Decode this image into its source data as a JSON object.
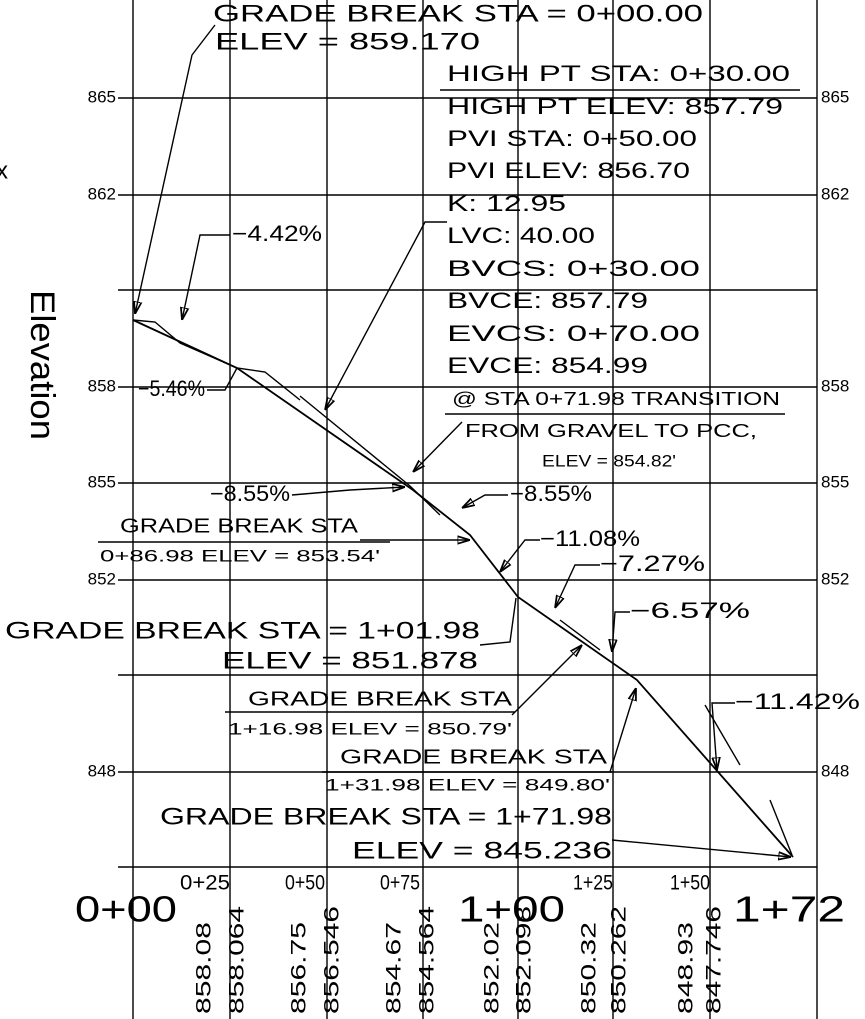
{
  "stray_mark": "x",
  "axis": {
    "title": "Elevation",
    "labels_left": [
      "865",
      "862",
      "858",
      "855",
      "852",
      "848"
    ],
    "labels_right": [
      "865",
      "862",
      "858",
      "855",
      "852",
      "848"
    ]
  },
  "stations": [
    "0+00",
    "0+25",
    "0+50",
    "0+75",
    "1+00",
    "1+25",
    "1+50",
    "1+72"
  ],
  "elevations": [
    "858.08",
    "858.064",
    "856.75",
    "856.546",
    "854.67",
    "854.564",
    "852.02",
    "852.098",
    "850.32",
    "850.262",
    "848.93",
    "847.746"
  ],
  "annotations": [
    "GRADE BREAK STA = 0+00.00",
    "ELEV = 859.170",
    "HIGH PT STA: 0+30.00",
    "HIGH PT ELEV: 857.79",
    "PVI STA: 0+50.00",
    "PVI ELEV: 856.70",
    "K: 12.95",
    "LVC: 40.00",
    "BVCS: 0+30.00",
    "BVCE: 857.79",
    "EVCS: 0+70.00",
    "EVCE: 854.99",
    "@ STA 0+71.98 TRANSITION",
    "FROM GRAVEL TO PCC,",
    "ELEV = 854.82'",
    "−4.42%",
    "−5.46%",
    "−8.55%",
    "−8.55%",
    "GRADE BREAK STA",
    "0+86.98 ELEV = 853.54'",
    "−11.08%",
    "−7.27%",
    "−6.57%",
    "GRADE BREAK STA = 1+01.98",
    "ELEV = 851.878",
    "GRADE BREAK STA",
    "1+16.98 ELEV = 850.79'",
    "GRADE BREAK STA",
    "1+31.98 ELEV = 849.80'",
    "−11.42%",
    "GRADE BREAK STA = 1+71.98",
    "ELEV = 845.236"
  ]
}
